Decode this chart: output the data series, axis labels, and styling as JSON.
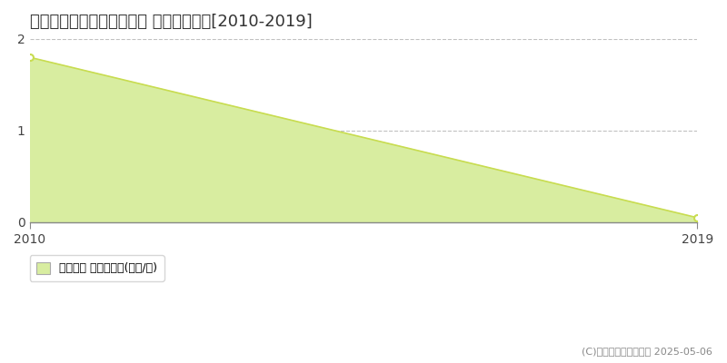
{
  "title": "多可郡多可町八千代区大屋 土地価格推移[2010-2019]",
  "x": [
    2010,
    2019
  ],
  "y": [
    1.8,
    0.05
  ],
  "xlim": [
    2010,
    2019
  ],
  "ylim": [
    0,
    2
  ],
  "yticks": [
    0,
    1,
    2
  ],
  "xticks": [
    2010,
    2019
  ],
  "line_color": "#c8dc50",
  "fill_color": "#d8eda0",
  "marker_color": "#c8dc50",
  "marker_face_color": "#ffffff",
  "grid_color": "#bbbbbb",
  "background_color": "#ffffff",
  "plot_background_color": "#ffffff",
  "title_fontsize": 13,
  "legend_label": "土地価格 平均坪単価(万円/坪)",
  "copyright_text": "(C)土地価格ドットコム 2025-05-06",
  "marker_size": 5
}
